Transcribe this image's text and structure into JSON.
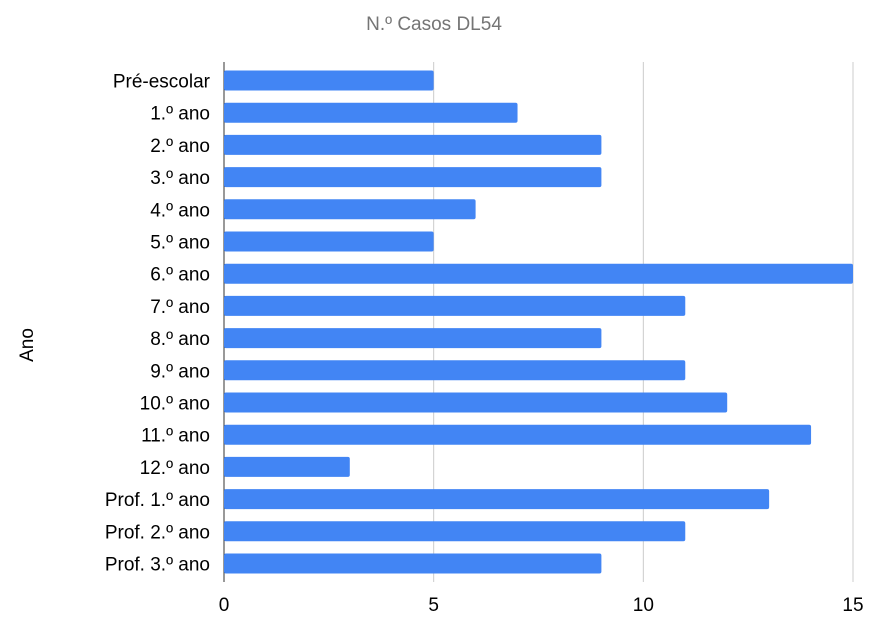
{
  "chart_data": {
    "type": "bar",
    "orientation": "horizontal",
    "title": "N.º Casos DL54",
    "ylabel": "Ano",
    "xlabel": "",
    "categories": [
      "Pré-escolar",
      "1.º ano",
      "2.º ano",
      "3.º ano",
      "4.º ano",
      "5.º ano",
      "6.º ano",
      "7.º ano",
      "8.º ano",
      "9.º ano",
      "10.º ano",
      "11.º ano",
      "12.º ano",
      "Prof. 1.º ano",
      "Prof. 2.º ano",
      "Prof. 3.º ano"
    ],
    "values": [
      5,
      7,
      9,
      9,
      6,
      5,
      15,
      11,
      9,
      11,
      12,
      14,
      3,
      13,
      11,
      9
    ],
    "xlim": [
      0,
      15
    ],
    "xticks": [
      "0",
      "5",
      "10",
      "15"
    ],
    "xtick_values": [
      0,
      5,
      10,
      15
    ],
    "grid": true,
    "colors": {
      "bar": "#4285f4",
      "grid": "#cccccc",
      "axis": "#333333",
      "title": "#757575",
      "text": "#000000"
    }
  }
}
